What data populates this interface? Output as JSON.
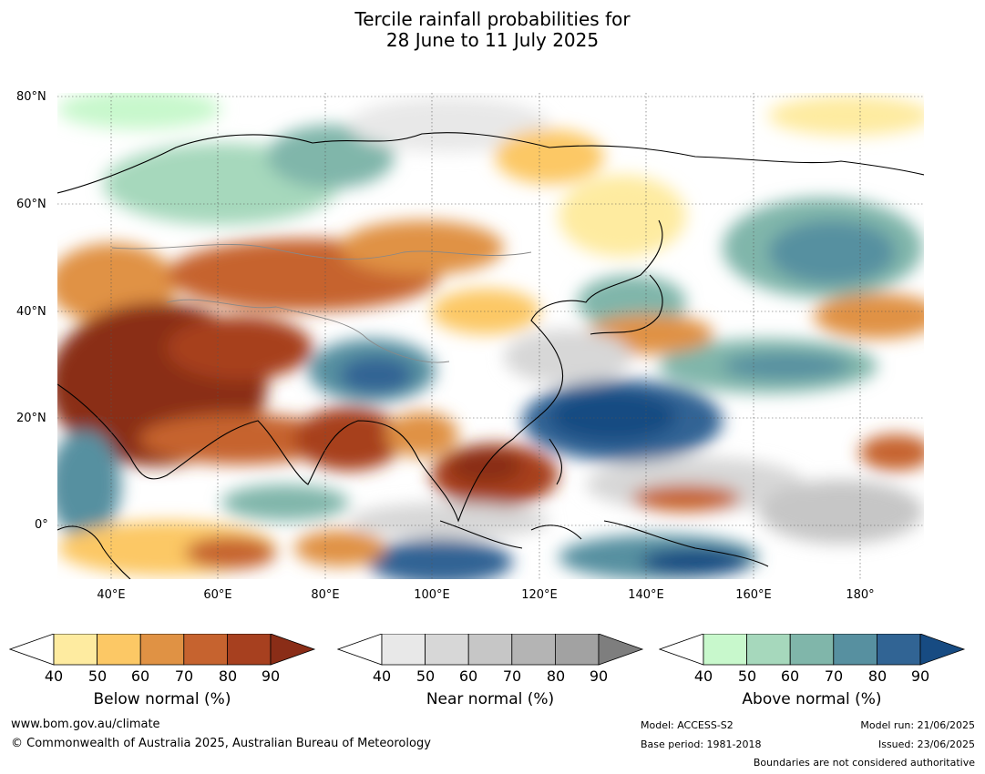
{
  "title_line1": "Tercile rainfall probabilities for",
  "title_line2": "28 June to 11 July 2025",
  "lat_labels": [
    "80°N",
    "60°N",
    "40°N",
    "20°N",
    "0°"
  ],
  "lon_labels": [
    "40°E",
    "60°E",
    "80°E",
    "100°E",
    "120°E",
    "140°E",
    "160°E",
    "180°"
  ],
  "colorbars": [
    {
      "label": "Below normal (%)",
      "ticks": [
        "40",
        "50",
        "60",
        "70",
        "80",
        "90"
      ],
      "colors": [
        "#ffffff",
        "#feeba0",
        "#fcc865",
        "#e09244",
        "#c6632f",
        "#a7401f",
        "#8a2d17"
      ]
    },
    {
      "label": "Near normal (%)",
      "ticks": [
        "40",
        "50",
        "60",
        "70",
        "80",
        "90"
      ],
      "colors": [
        "#ffffff",
        "#e8e8e8",
        "#d7d7d7",
        "#c6c6c6",
        "#b4b4b4",
        "#a2a2a2",
        "#7e7e7e"
      ]
    },
    {
      "label": "Above normal (%)",
      "ticks": [
        "40",
        "50",
        "60",
        "70",
        "80",
        "90"
      ],
      "colors": [
        "#ffffff",
        "#c8f8cc",
        "#a6d8bc",
        "#80b6aa",
        "#5790a0",
        "#316494",
        "#174b82"
      ]
    }
  ],
  "footer": {
    "website": "www.bom.gov.au/climate",
    "copyright": "© Commonwealth of Australia 2025, Australian Bureau of Meteorology",
    "model": "Model: ACCESS-S2",
    "base_period": "Base period: 1981-2018",
    "model_run": "Model run: 21/06/2025",
    "issued": "Issued: 23/06/2025",
    "boundaries": "Boundaries are not considered authoritative"
  }
}
